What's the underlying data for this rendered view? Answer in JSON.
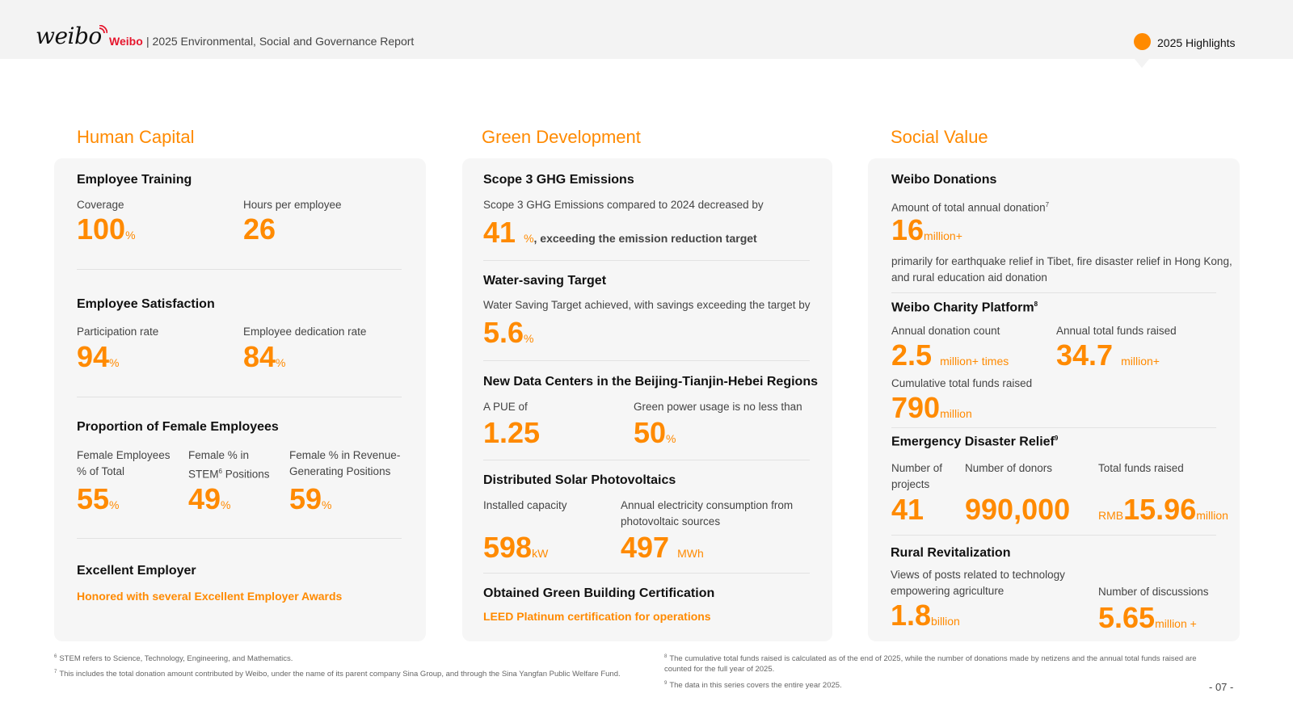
{
  "header": {
    "logo": "weibo",
    "brand": "Weibo",
    "report_title": "| 2025 Environmental, Social and Governance Report",
    "highlights": "2025 Highlights",
    "accent": "#ff8a00",
    "brand_color": "#e6162d"
  },
  "human_capital": {
    "title": "Human Capital",
    "training": {
      "heading": "Employee Training",
      "coverage_label": "Coverage",
      "coverage_value": "100",
      "coverage_unit": "%",
      "hours_label": "Hours per employee",
      "hours_value": "26"
    },
    "satisfaction": {
      "heading": "Employee Satisfaction",
      "participation_label": "Participation rate",
      "participation_value": "94",
      "participation_unit": "%",
      "dedication_label": "Employee dedication rate",
      "dedication_value": "84",
      "dedication_unit": "%"
    },
    "female": {
      "heading": "Proportion of Female Employees",
      "total_label": "Female Employees % of Total",
      "total_value": "55",
      "total_unit": "%",
      "stem_label_a": "Female % in",
      "stem_label_b": "STEM",
      "stem_sup": "6",
      "stem_label_c": " Positions",
      "stem_value": "49",
      "stem_unit": "%",
      "revenue_label": "Female % in Revenue-Generating Positions",
      "revenue_value": "59",
      "revenue_unit": "%"
    },
    "employer": {
      "heading": "Excellent Employer",
      "text": "Honored with several Excellent Employer Awards"
    }
  },
  "green": {
    "title": "Green Development",
    "scope3": {
      "heading": "Scope 3 GHG Emissions",
      "text": "Scope 3 GHG Emissions compared to 2024 decreased by",
      "value": "41",
      "unit": "%",
      "suffix": ", exceeding the emission reduction target"
    },
    "water": {
      "heading": "Water-saving Target",
      "text": "Water Saving Target achieved, with savings exceeding the target by",
      "value": "5.6",
      "unit": "%"
    },
    "datacenter": {
      "heading": "New Data Centers in the Beijing-Tianjin-Hebei Regions",
      "pue_label": "A PUE of",
      "pue_value": "1.25",
      "green_label": "Green power usage is no less than",
      "green_value": "50",
      "green_unit": "%"
    },
    "solar": {
      "heading": "Distributed Solar Photovoltaics",
      "capacity_label": "Installed capacity",
      "capacity_value": "598",
      "capacity_unit": "kW",
      "consumption_label": "Annual electricity consumption from photovoltaic sources",
      "consumption_value": "497",
      "consumption_unit": "MWh"
    },
    "building": {
      "heading": "Obtained Green Building Certification",
      "text": "LEED Platinum certification for operations"
    }
  },
  "social": {
    "title": "Social Value",
    "donations": {
      "heading": "Weibo Donations",
      "label": "Amount of total annual donation",
      "label_sup": "7",
      "value": "16",
      "unit": "million+",
      "text": "primarily for earthquake relief in Tibet, fire disaster relief in Hong Kong, and rural education aid donation"
    },
    "charity": {
      "heading": "Weibo Charity Platform",
      "heading_sup": "8",
      "count_label": "Annual donation count",
      "count_value": "2.5",
      "count_unit": "million+ times",
      "funds_label": "Annual total funds raised",
      "funds_value": "34.7",
      "funds_unit": "million+",
      "cumulative_label": "Cumulative total funds raised",
      "cumulative_value": "790",
      "cumulative_unit": "million"
    },
    "emergency": {
      "heading": "Emergency Disaster Relief",
      "heading_sup": "9",
      "projects_label": "Number of projects",
      "projects_value": "41",
      "donors_label": "Number of donors",
      "donors_value": "990,000",
      "funds_label": "Total funds raised",
      "funds_prefix": "RMB",
      "funds_value": "15.96",
      "funds_unit": "million"
    },
    "rural": {
      "heading": "Rural Revitalization",
      "views_label": "Views of posts related to technology empowering agriculture",
      "views_value": "1.8",
      "views_unit": "billion",
      "discussions_label": "Number of discussions",
      "discussions_value": "5.65",
      "discussions_unit": "million +"
    }
  },
  "footnotes": {
    "fn6_num": "6",
    "fn6": "STEM refers to Science, Technology, Engineering, and Mathematics.",
    "fn7_num": "7",
    "fn7": "This includes the total donation amount contributed by Weibo, under the name of its parent company Sina Group, and through the Sina Yangfan Public Welfare Fund.",
    "fn8_num": "8",
    "fn8": "The cumulative total funds raised is calculated as of the end of 2025, while the number of donations made by netizens and the annual total funds raised are counted for the full year of 2025.",
    "fn9_num": "9",
    "fn9": "The data in this series covers the entire year 2025."
  },
  "page_number": "- 07 -"
}
